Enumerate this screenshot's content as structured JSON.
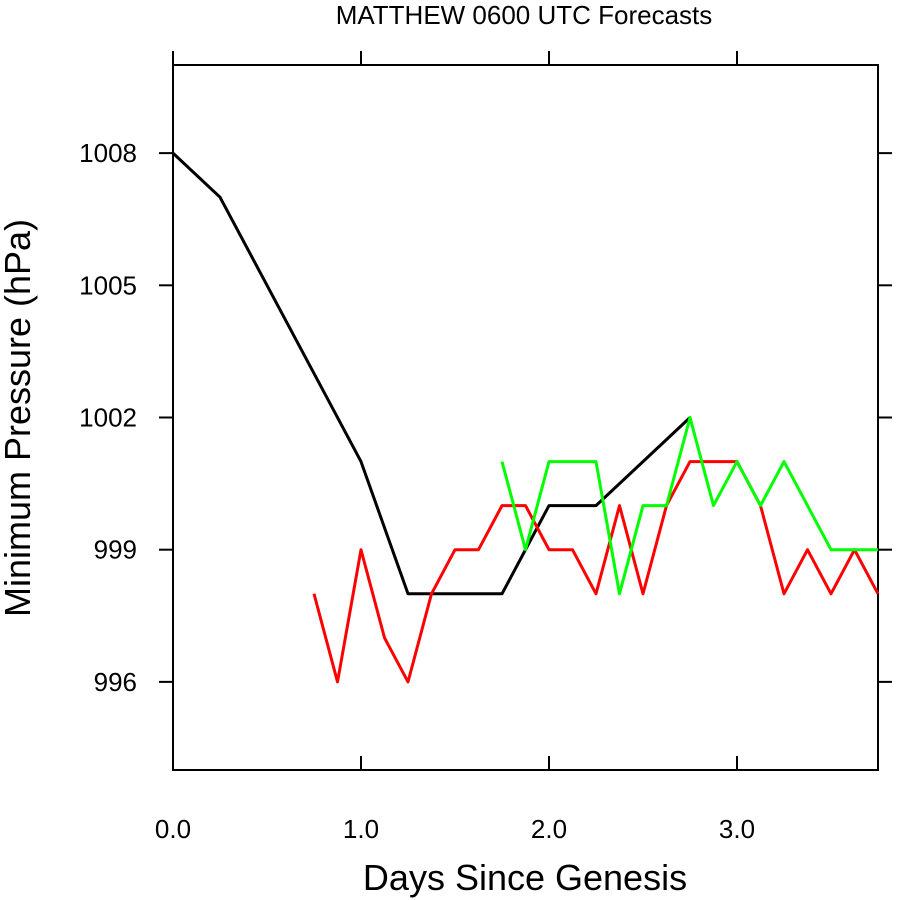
{
  "chart_data": {
    "type": "line",
    "title": "MATTHEW 0600 UTC Forecasts",
    "xlabel": "Days Since Genesis",
    "ylabel": "Minimum Pressure (hPa)",
    "xlim": [
      0.0,
      3.75
    ],
    "ylim": [
      994,
      1010
    ],
    "xticks": [
      0.0,
      1.0,
      2.0,
      3.0
    ],
    "xtick_labels": [
      "0.0",
      "1.0",
      "2.0",
      "3.0"
    ],
    "yticks": [
      996,
      999,
      1002,
      1005,
      1008
    ],
    "ytick_labels": [
      "996",
      "999",
      "1002",
      "1005",
      "1008"
    ],
    "grid": false,
    "series": [
      {
        "color": "#000000",
        "x": [
          0.0,
          0.25,
          0.5,
          0.75,
          1.0,
          1.25,
          1.5,
          1.75,
          2.0,
          2.25,
          2.5,
          2.75
        ],
        "y": [
          1008,
          1007,
          1005,
          1003,
          1001,
          998,
          998,
          998,
          1000,
          1000,
          1001,
          1002
        ]
      },
      {
        "color": "#ff0000",
        "x": [
          0.75,
          0.875,
          1.0,
          1.125,
          1.25,
          1.375,
          1.5,
          1.625,
          1.75,
          1.875,
          2.0,
          2.125,
          2.25,
          2.375,
          2.5,
          2.625,
          2.75,
          2.875,
          3.0,
          3.125,
          3.25,
          3.375,
          3.5,
          3.625,
          3.75
        ],
        "y": [
          998,
          996,
          999,
          997,
          996,
          998,
          999,
          999,
          1000,
          1000,
          999,
          999,
          998,
          1000,
          998,
          1000,
          1001,
          1001,
          1001,
          1000,
          998,
          999,
          998,
          999,
          998
        ]
      },
      {
        "color": "#00ff00",
        "x": [
          1.75,
          1.875,
          2.0,
          2.125,
          2.25,
          2.375,
          2.5,
          2.625,
          2.75,
          2.875,
          3.0,
          3.125,
          3.25,
          3.375,
          3.5,
          3.625,
          3.75
        ],
        "y": [
          1001,
          999,
          1001,
          1001,
          1001,
          998,
          1000,
          1000,
          1002,
          1000,
          1001,
          1000,
          1001,
          1000,
          999,
          999,
          999
        ]
      }
    ]
  }
}
